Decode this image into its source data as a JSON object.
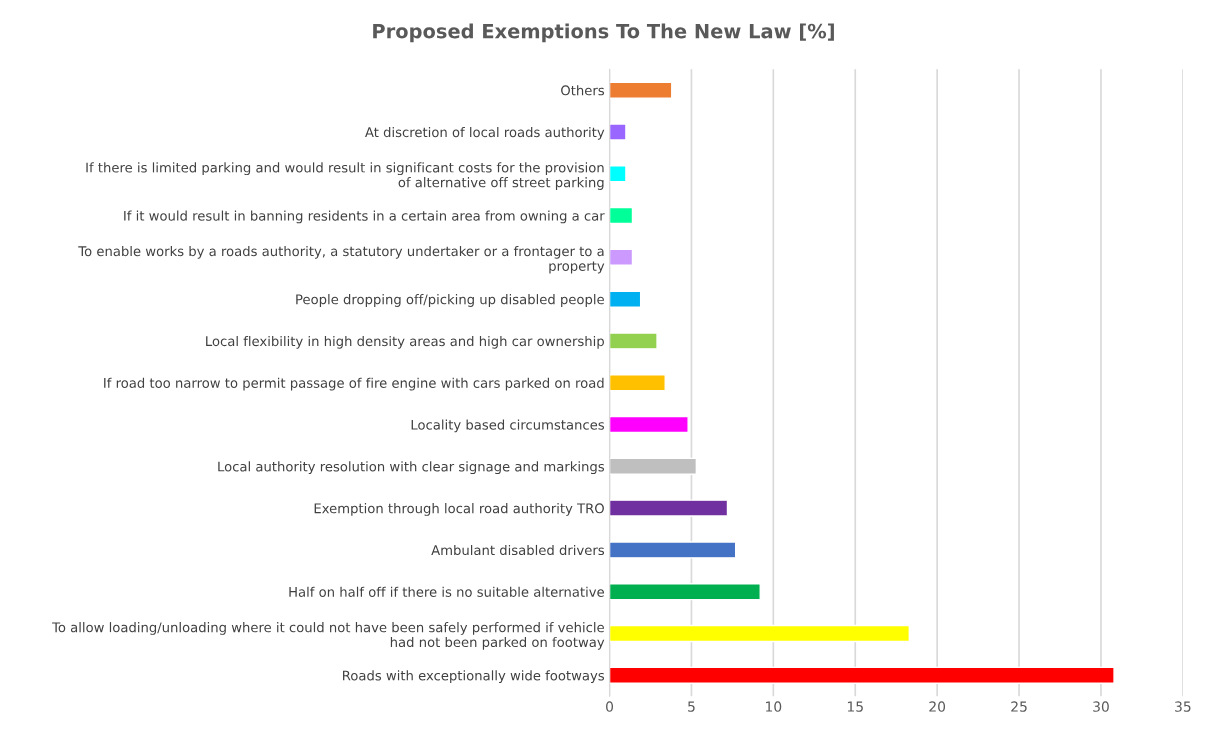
{
  "chart_data": {
    "type": "bar",
    "orientation": "horizontal",
    "title": "Proposed Exemptions To The New Law [%]",
    "categories": [
      "Others",
      "At discretion of local roads authority",
      "If there is limited parking and would result in significant costs for the provision of alternative off street parking",
      "If it would result in banning residents in a certain area from owning a car",
      "To enable works by a roads authority, a statutory undertaker or a frontager to a property",
      "People dropping off/picking up disabled people",
      "Local flexibility in high density areas and high car ownership",
      "If road too narrow to permit passage of fire engine with cars parked on road",
      "Locality based circumstances",
      "Local authority resolution with clear signage and markings",
      "Exemption through local road authority TRO",
      "Ambulant disabled drivers",
      "Half on half off if there is no suitable alternative",
      "To allow loading/unloading where it could not have been safely performed if vehicle had not been parked on footway",
      "Roads with exceptionally wide footways"
    ],
    "values": [
      3.8,
      1.0,
      1.0,
      1.4,
      1.4,
      1.9,
      2.9,
      3.4,
      4.8,
      5.3,
      7.2,
      7.7,
      9.2,
      18.3,
      30.8
    ],
    "colors": [
      "#ed7d31",
      "#9966ff",
      "#00ffff",
      "#00ff99",
      "#cc99ff",
      "#00b0f0",
      "#92d050",
      "#ffc000",
      "#ff00ff",
      "#bfbfbf",
      "#7030a0",
      "#4472c4",
      "#00b050",
      "#ffff00",
      "#ff0000"
    ],
    "xlim": [
      0,
      35
    ],
    "xticks": [
      0,
      5,
      10,
      15,
      20,
      25,
      30,
      35
    ],
    "grid": "x",
    "legend": false
  }
}
